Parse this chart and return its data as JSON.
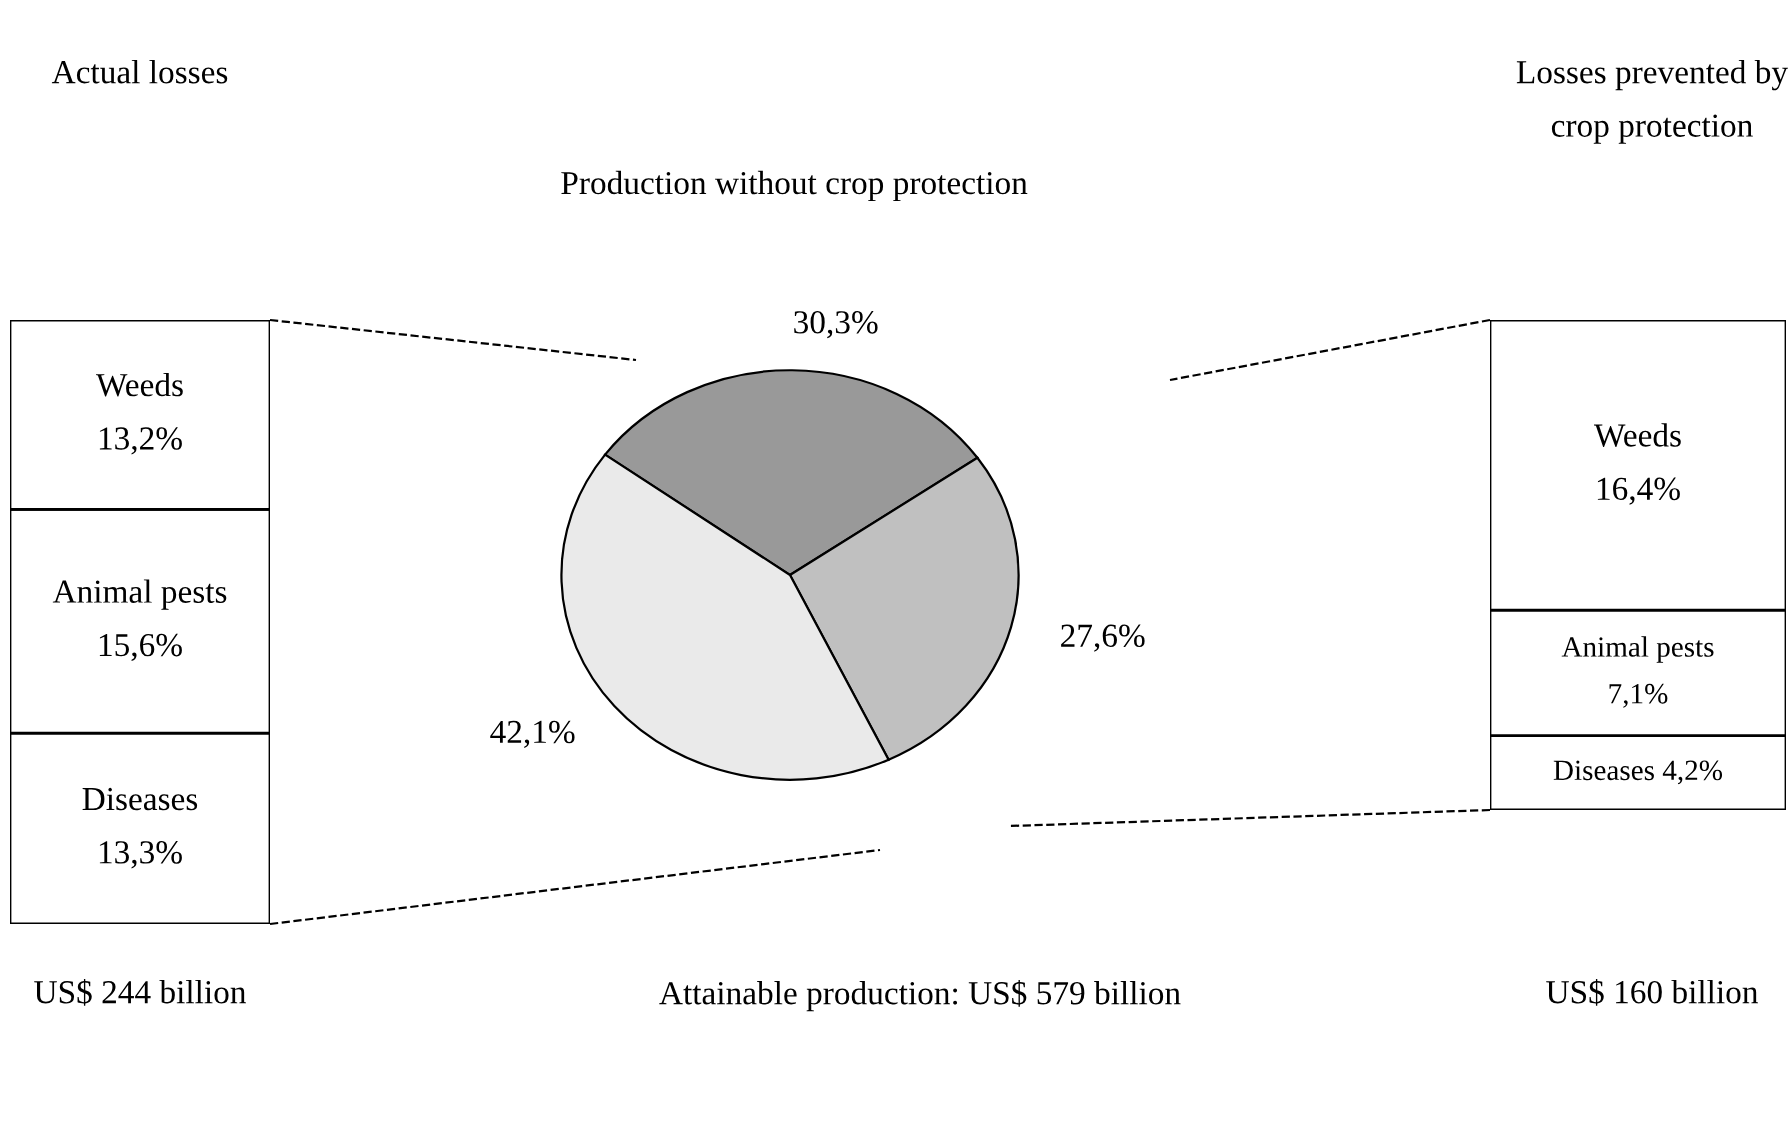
{
  "chart_data": [
    {
      "type": "bar",
      "stacked": true,
      "title": "Actual losses",
      "categories": [
        null
      ],
      "tick_labels": false,
      "series": [
        {
          "name": "Diseases",
          "color": "#ffffff",
          "values": [
            13.3
          ],
          "value_labels": [
            "13,3%"
          ]
        },
        {
          "name": "Animal pests",
          "color": "#ffffff",
          "values": [
            15.6
          ],
          "value_labels": [
            "15,6%"
          ]
        },
        {
          "name": "Weeds",
          "color": "#ffffff",
          "values": [
            13.2
          ],
          "value_labels": [
            "13,2%"
          ]
        }
      ],
      "annotations": [
        "US$ 244 billion"
      ]
    },
    {
      "type": "pie",
      "categories": [
        "Production without crop protection",
        null,
        null
      ],
      "values": [
        30.3,
        27.6,
        42.1
      ],
      "value_labels": [
        "30,3%",
        "27,6%",
        "42,1%"
      ],
      "colors": [
        "#999999",
        "#c0c0c0",
        "#eaeaea"
      ],
      "annotations": [
        "Attainable production: US$ 579 billion"
      ]
    },
    {
      "type": "bar",
      "stacked": true,
      "title": "Losses prevented by crop protection",
      "categories": [
        null
      ],
      "tick_labels": false,
      "series": [
        {
          "name": "Diseases",
          "color": "#ffffff",
          "values": [
            4.2
          ],
          "value_labels": [
            "4,2%"
          ]
        },
        {
          "name": "Animal pests",
          "color": "#ffffff",
          "values": [
            7.1
          ],
          "value_labels": [
            "7,1%"
          ]
        },
        {
          "name": "Weeds",
          "color": "#ffffff",
          "values": [
            16.4
          ],
          "value_labels": [
            "16,4%"
          ]
        }
      ],
      "annotations": [
        "US$ 160 billion"
      ]
    }
  ]
}
